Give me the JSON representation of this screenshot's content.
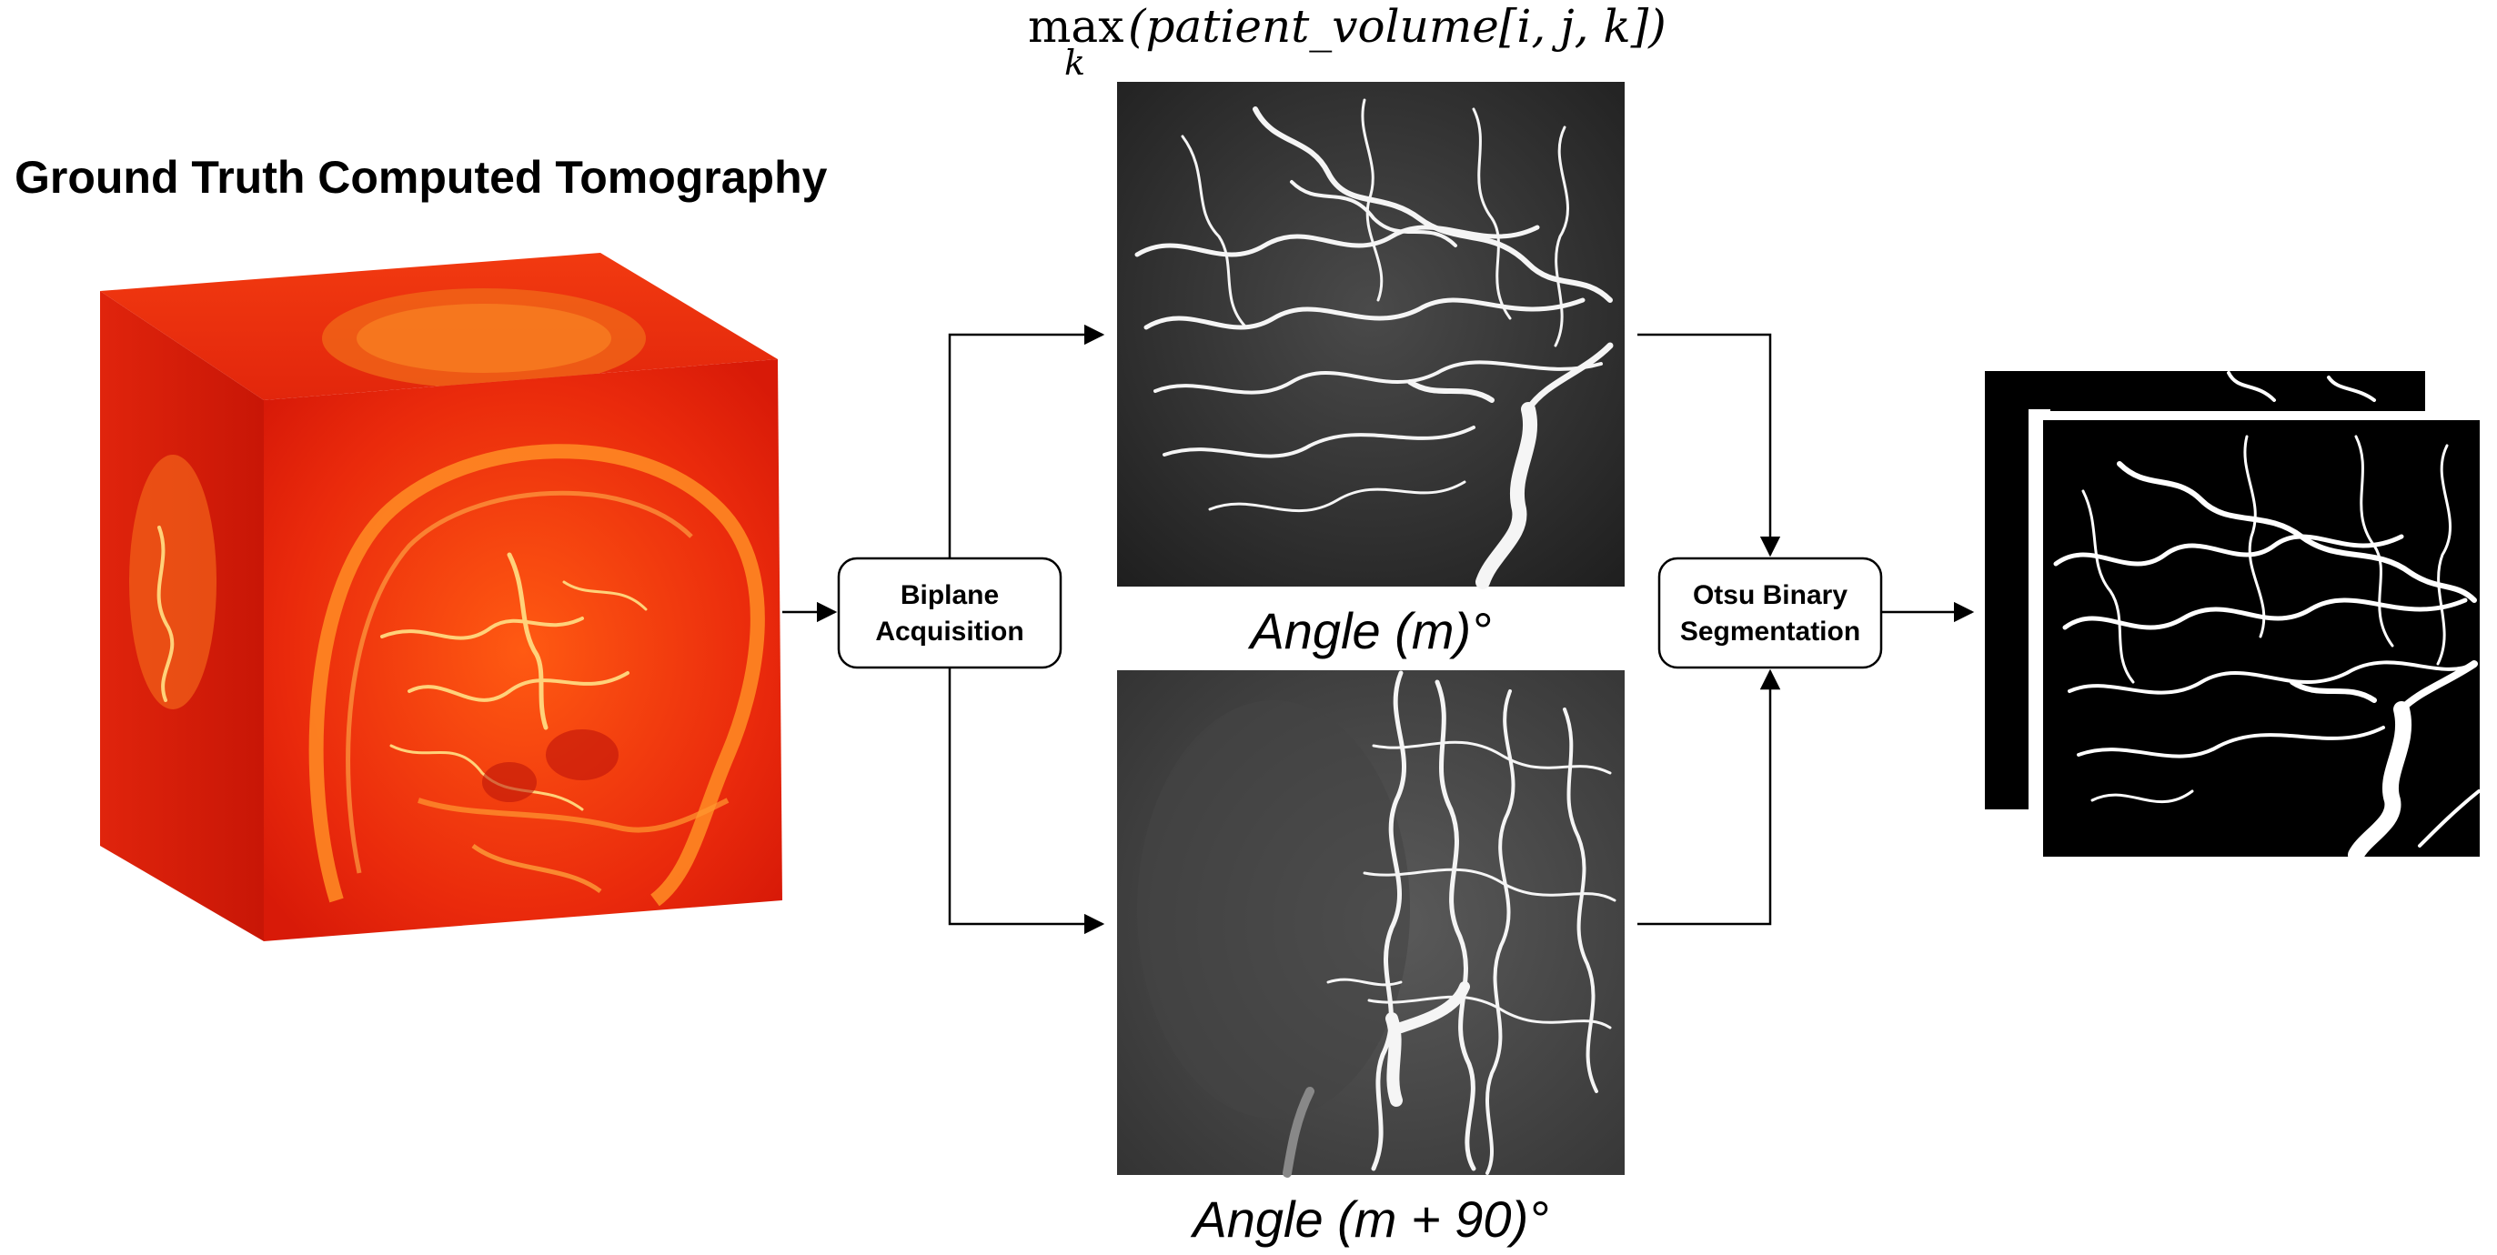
{
  "title": "Ground Truth Computed Tomography",
  "formula": {
    "operator": "max",
    "subscript": "k",
    "expression": "(patient_volume[i, j, k])"
  },
  "projections": [
    {
      "label": "Angle (m)°"
    },
    {
      "label": "Angle (m + 90)°"
    }
  ],
  "steps": {
    "acquisition": [
      "Biplane",
      "Acquisition"
    ],
    "segmentation": [
      "Otsu Binary",
      "Segmentation"
    ]
  },
  "colors": {
    "volume_red": "#e8200f",
    "volume_glow": "#ff8a1f",
    "xray_bg": "#3a3a3a",
    "binary_bg": "#000000",
    "vessel": "#ffffff"
  }
}
